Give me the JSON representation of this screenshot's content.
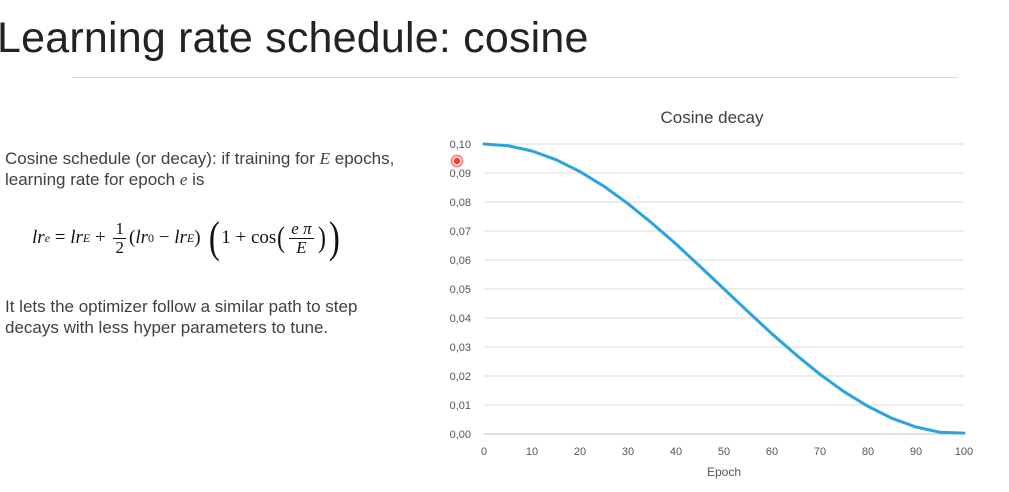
{
  "slide": {
    "title": "Learning rate schedule: cosine",
    "para1_text": "Cosine schedule (or decay): if training for ",
    "para1_E": "E",
    "para1_mid": " epochs, learning rate for epoch ",
    "para1_e": "e",
    "para1_end": " is",
    "para2_text": "It lets the optimizer follow a similar path to step decays with less hyper parameters to tune."
  },
  "formula": {
    "lhs": "lr",
    "lhs_sub": "e",
    "equals": " = ",
    "term1": "lr",
    "term1_sub": "E",
    "plus": " + ",
    "half_num": "1",
    "half_den": "2",
    "paren_open": "(",
    "lr0": "lr",
    "lr0_sub": "0",
    "minus": " − ",
    "lrE": "lr",
    "lrE_sub": "E",
    "paren_close": ")",
    "big_open": "(",
    "one_plus": "1 + cos",
    "inner_open": "(",
    "frac_num": "e π",
    "frac_den": "E",
    "inner_close": ")",
    "big_close": ")"
  },
  "chart_data": {
    "type": "line",
    "title": "Cosine decay",
    "xlabel": "Epoch",
    "ylabel": "",
    "xlim": [
      0,
      100
    ],
    "ylim": [
      0,
      0.1
    ],
    "x_ticks": [
      0,
      10,
      20,
      30,
      40,
      50,
      60,
      70,
      80,
      90,
      100
    ],
    "x_tick_labels": [
      "0",
      "10",
      "20",
      "30",
      "40",
      "50",
      "60",
      "70",
      "80",
      "90",
      "100"
    ],
    "y_ticks": [
      0,
      0.01,
      0.02,
      0.03,
      0.04,
      0.05,
      0.06,
      0.07,
      0.08,
      0.09,
      0.1
    ],
    "y_tick_labels": [
      "0,00",
      "0,01",
      "0,02",
      "0,03",
      "0,04",
      "0,05",
      "0,06",
      "0,07",
      "0,08",
      "0,09",
      "0,10"
    ],
    "grid": "horizontal",
    "legend": "none",
    "series": [
      {
        "color": "#2aa3e0",
        "x": [
          0,
          5,
          10,
          15,
          20,
          25,
          30,
          35,
          40,
          45,
          50,
          55,
          60,
          65,
          70,
          75,
          80,
          85,
          90,
          95,
          100
        ],
        "y": [
          0.1,
          0.0994,
          0.0976,
          0.0946,
          0.0905,
          0.0854,
          0.0794,
          0.0727,
          0.0655,
          0.0578,
          0.05,
          0.0422,
          0.0345,
          0.0273,
          0.0206,
          0.0146,
          0.0095,
          0.0054,
          0.0024,
          0.0006,
          0.0003
        ]
      }
    ]
  }
}
